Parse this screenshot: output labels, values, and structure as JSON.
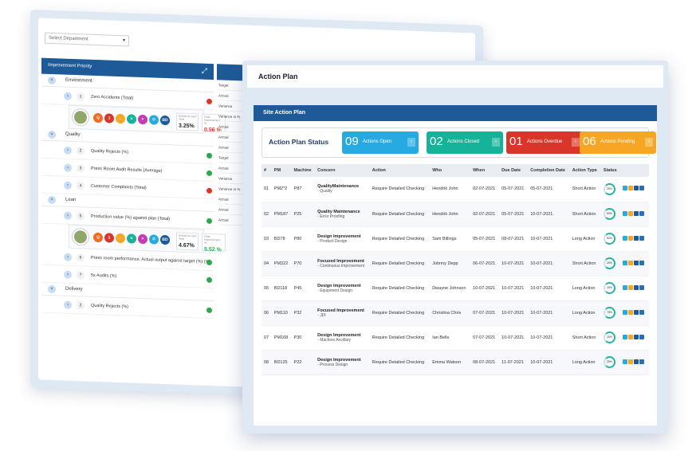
{
  "back_panel": {
    "department_select": {
      "placeholder": "Select Department"
    },
    "improvement_priority": {
      "title": "Improvement Priority",
      "categories": [
        {
          "name": "Environment",
          "kpis": [
            {
              "num": "1",
              "label": "Zero Accidents (Total)",
              "status": "red"
            }
          ]
        },
        {
          "name": "Quality",
          "kpis": [
            {
              "num": "2",
              "label": "Quality Rejects (%)",
              "status": "green"
            },
            {
              "num": "3",
              "label": "Press Room Audit Results (Average)",
              "status": "green"
            },
            {
              "num": "4",
              "label": "Customer Complaints (Total)",
              "status": "red"
            }
          ]
        },
        {
          "name": "Lean",
          "kpis": [
            {
              "num": "5",
              "label": "Production value (%) against plan (Total)",
              "status": "green"
            },
            {
              "num": "6",
              "label": "Press room performance. Actual output against target (%) (%)",
              "status": "green"
            },
            {
              "num": "7",
              "label": "5s Audits (%)",
              "status": "green"
            }
          ]
        },
        {
          "name": "Delivery",
          "kpis": [
            {
              "num": "2",
              "label": "Quality Rejects (%)",
              "status": "green"
            }
          ]
        }
      ],
      "details": [
        {
          "actual_label": "Actual vs Last Year",
          "actual": "3.25%",
          "goal_label": "Goal Improvement %",
          "goal": "0.56 %",
          "goal_color": "red"
        },
        {
          "actual_label": "Actual vs Last Year",
          "actual": "4.67%",
          "goal_label": "Goal Improvement %",
          "goal": "5.52 %",
          "goal_color": "green"
        }
      ],
      "chips": [
        "Q",
        "1",
        "←",
        "✕",
        "✴",
        "⚙",
        "BD"
      ],
      "side_labels": [
        "Target",
        "Actual",
        "Variance",
        "Variance in %",
        "Actual",
        "Actual",
        "Actual",
        "Target",
        "Actual",
        "Variance",
        "Variance in %",
        "Actual",
        "Actual",
        "Actual"
      ]
    }
  },
  "front_panel": {
    "title": "Action Plan",
    "section_title": "Site Action Plan",
    "status_title": "Action Plan Status",
    "status_cards": [
      {
        "count": "09",
        "label": "Actions Open",
        "color": "blue"
      },
      {
        "count": "02",
        "label": "Actions Closed",
        "color": "teal"
      },
      {
        "count": "01",
        "label": "Actions Overdue",
        "color": "red"
      },
      {
        "count": "06",
        "label": "Actions Pending",
        "color": "orange"
      }
    ],
    "columns": [
      "#",
      "PM",
      "Machine",
      "Concern",
      "Action",
      "Who",
      "When",
      "Due Date",
      "Completion Date",
      "Action Type",
      "Status"
    ],
    "rows": [
      {
        "n": "01",
        "pm": "PM2*2",
        "machine": "P87",
        "concern": "QualityMaintenance",
        "sub": "- Quality",
        "action": "Require Detailed Checking",
        "who": "Hendrik John",
        "when": "02-07-2021",
        "due": "05-07-2021",
        "completion": "05-07-2021",
        "type": "Short Action",
        "status": "25%"
      },
      {
        "n": "02",
        "pm": "PM187",
        "machine": "P25",
        "concern": "Quality Maintenance",
        "sub": "- Error Proofing",
        "action": "Require Detailed Checking",
        "who": "Hendrik John",
        "when": "02-07-2021",
        "due": "05-07-2021",
        "completion": "10-07-2021",
        "type": "Short Action",
        "status": "50%"
      },
      {
        "n": "03",
        "pm": "BD78",
        "machine": "P80",
        "concern": "Design Improvement",
        "sub": "- Product Design",
        "action": "Require Detailed Checking",
        "who": "Sam Billings",
        "when": "05-07-2021",
        "due": "08-07-2021",
        "completion": "10-07-2021",
        "type": "Long Action",
        "status": "50%"
      },
      {
        "n": "04",
        "pm": "PM322",
        "machine": "P70",
        "concern": "Focused Improvement",
        "sub": "- Continuous Improvement",
        "action": "Require Detailed Checking",
        "who": "Johnny Depp",
        "when": "06-07-2021",
        "due": "10-07-2021",
        "completion": "10-07-2021",
        "type": "Short Action",
        "status": "25%"
      },
      {
        "n": "05",
        "pm": "BD118",
        "machine": "P45",
        "concern": "Design Improvement",
        "sub": "- Equipment Design",
        "action": "Require Detailed Checking",
        "who": "Dwayne Johnson",
        "when": "10-07-2021",
        "due": "10-07-2021",
        "completion": "10-07-2021",
        "type": "Long Action",
        "status": "25%"
      },
      {
        "n": "06",
        "pm": "PM110",
        "machine": "P32",
        "concern": "Focused Improvement",
        "sub": "- JDI",
        "action": "Require Detailed Checking",
        "who": "Christina Chris",
        "when": "07-07-2021",
        "due": "10-07-2021",
        "completion": "10-07-2021",
        "type": "Long Action",
        "status": "75%"
      },
      {
        "n": "07",
        "pm": "PM168",
        "machine": "P30",
        "concern": "Design Improvement",
        "sub": "- Machine Ancillary",
        "action": "Require Detailed Checking",
        "who": "Ian Bells",
        "when": "07-07-2021",
        "due": "10-07-2021",
        "completion": "10-07-2021",
        "type": "Short Action",
        "status": "25%"
      },
      {
        "n": "08",
        "pm": "BD125",
        "machine": "P22",
        "concern": "Design Improvement",
        "sub": "- Process Design",
        "action": "Require Detailed Checking",
        "who": "Emma Watson",
        "when": "08-07-2021",
        "due": "11-07-2021",
        "completion": "10-07-2021",
        "type": "Long Action",
        "status": "25%"
      }
    ]
  },
  "colors": {
    "primary": "#1f5a98",
    "open": "#27a9e1",
    "closed": "#17b29a",
    "overdue": "#d9352b",
    "pending": "#f6a623"
  }
}
